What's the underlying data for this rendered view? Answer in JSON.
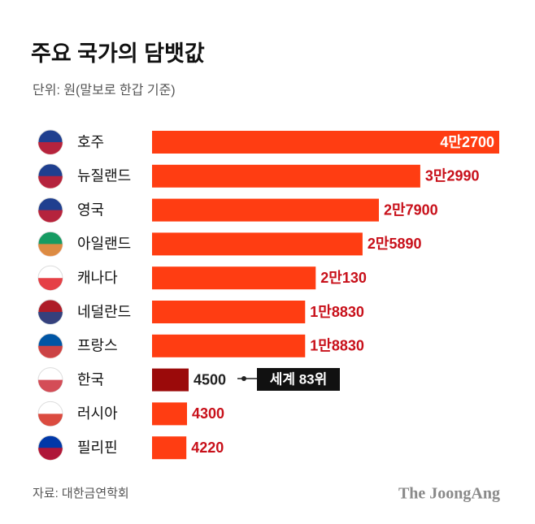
{
  "chart_data": {
    "type": "bar",
    "orientation": "horizontal",
    "title": "주요 국가의 담뱃값",
    "subtitle": "단위: 원(말보로 한갑 기준)",
    "categories": [
      "호주",
      "뉴질랜드",
      "영국",
      "아일랜드",
      "캐나다",
      "네덜란드",
      "프랑스",
      "한국",
      "러시아",
      "필리핀"
    ],
    "values": [
      42700,
      32990,
      27900,
      25890,
      20130,
      18830,
      18830,
      4500,
      4300,
      4220
    ],
    "value_labels": [
      "4만2700",
      "3만2990",
      "2만7900",
      "2만5890",
      "2만130",
      "1만8830",
      "1만8830",
      "4500",
      "4300",
      "4220"
    ],
    "colors": [
      "#ff3d12",
      "#ff3d12",
      "#ff3d12",
      "#ff3d12",
      "#ff3d12",
      "#ff3d12",
      "#ff3d12",
      "#9b0a0a",
      "#ff3d12",
      "#ff3d12"
    ],
    "label_color": "#c8101a",
    "annotation": "세계 83위",
    "source": "자료: 대한금연학회",
    "brand": "The JoongAng"
  }
}
